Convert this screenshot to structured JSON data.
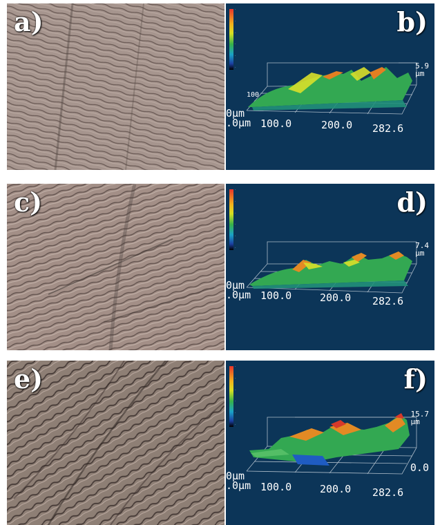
{
  "figure": {
    "rows": [
      {
        "photo": {
          "label": "a)",
          "tone": "#9a8780"
        },
        "profile": {
          "label": "b)",
          "z_max": "5.9",
          "z_unit": "μm",
          "x_ticks": [
            "100.0",
            "200.0",
            "282.6"
          ],
          "origin_top": "0μm",
          "origin_bottom": ".0μm",
          "y_mark": "100"
        }
      },
      {
        "photo": {
          "label": "c)",
          "tone": "#968178"
        },
        "profile": {
          "label": "d)",
          "z_max": "7.4",
          "z_unit": "μm",
          "x_ticks": [
            "100.0",
            "200.0",
            "282.6"
          ],
          "origin_top": "0μm",
          "origin_bottom": ".0μm",
          "y_mark": ""
        }
      },
      {
        "photo": {
          "label": "e)",
          "tone": "#8a7b72"
        },
        "profile": {
          "label": "f)",
          "z_max": "15.7",
          "z_unit": "μm",
          "z_min": "0.0",
          "x_ticks": [
            "100.0",
            "200.0",
            "282.6"
          ],
          "origin_top": "0μm",
          "origin_bottom": ".0μm",
          "y_mark": ""
        }
      }
    ]
  },
  "colors": {
    "profile_background": "#0c3558",
    "photo_base": "#9a8780",
    "axis_lines": "#c9d3dc"
  }
}
